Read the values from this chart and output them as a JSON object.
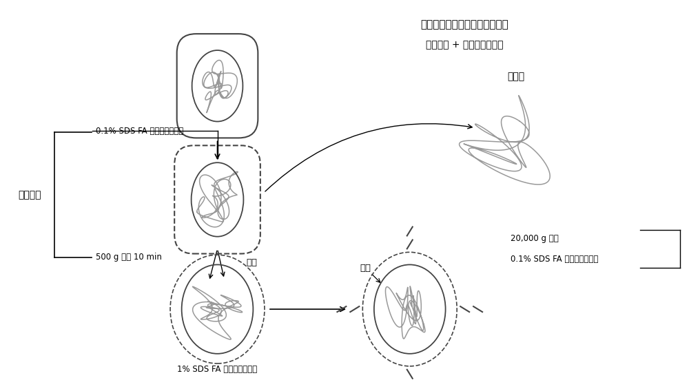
{
  "title_line1": "细胞分步裂解纯化高质量染色质",
  "title_line2": "（细胞膜 + 核膜穿孔裂解）",
  "label_sds_01": "0.1% SDS FA 细胞裂解缓冲液",
  "label_repeat": "重复一次",
  "label_500g": "500 g 离心 10 min",
  "label_cytoplasm": "胞质",
  "label_1sds": "1% SDS FA 细胞裂解缓冲液",
  "label_chromatin": "染色质",
  "label_nucleus": "核质",
  "label_20000g": "20,000 g 离心",
  "label_sds_01b": "0.1% SDS FA 细胞裂解缓冲液",
  "bg_color": "#ffffff",
  "cell_color": "#444444",
  "chromatin_color": "#999999",
  "dashed_color": "#444444"
}
